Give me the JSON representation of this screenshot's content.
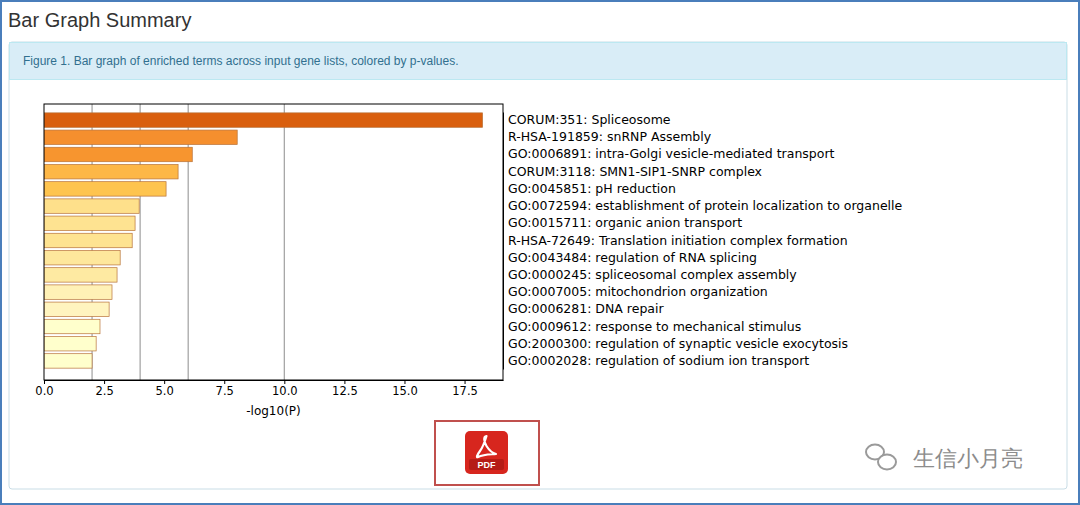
{
  "page": {
    "title": "Bar Graph Summary",
    "caption": "Figure 1. Bar graph of enriched terms across input gene lists, colored by p-values.",
    "pdf_label": "PDF",
    "watermark": "生信小月亮"
  },
  "chart_data": {
    "type": "bar",
    "orientation": "horizontal",
    "categories": [
      "CORUM:351: Spliceosome",
      "R-HSA-191859: snRNP Assembly",
      "GO:0006891: intra-Golgi vesicle-mediated transport",
      "CORUM:3118: SMN1-SIP1-SNRP complex",
      "GO:0045851: pH reduction",
      "GO:0072594: establishment of protein localization to organelle",
      "GO:0015711: organic anion transport",
      "R-HSA-72649: Translation initiation complex formation",
      "GO:0043484: regulation of RNA splicing",
      "GO:0000245: spliceosomal complex assembly",
      "GO:0007005: mitochondrion organization",
      "GO:0006281: DNA repair",
      "GO:0009612: response to mechanical stimulus",
      "GO:2000300: regulation of synaptic vesicle exocytosis",
      "GO:0002028: regulation of sodium ion transport"
    ],
    "values": [
      18.25,
      8.04,
      6.17,
      5.58,
      5.08,
      3.96,
      3.79,
      3.67,
      3.17,
      3.04,
      2.83,
      2.71,
      2.33,
      2.17,
      2.0
    ],
    "colors": [
      "#d95f0e",
      "#f58f2e",
      "#f7952f",
      "#fdb747",
      "#fec44f",
      "#fee08b",
      "#fee391",
      "#fee391",
      "#fee79c",
      "#feeaa2",
      "#fff1b6",
      "#fff4bf",
      "#ffffcc",
      "#ffffcc",
      "#ffffcc"
    ],
    "xlabel": "-log10(P)",
    "xlim": [
      0,
      19.1
    ],
    "xticks": [
      {
        "value": 0,
        "label": "0.0"
      },
      2.5,
      {
        "value": 5,
        "label": "5.0"
      },
      7.5,
      {
        "value": 10,
        "label": "10.0"
      },
      12.5,
      {
        "value": 15,
        "label": "15.0"
      },
      17.5
    ],
    "threshold_lines": [
      2,
      4,
      6,
      10
    ]
  }
}
